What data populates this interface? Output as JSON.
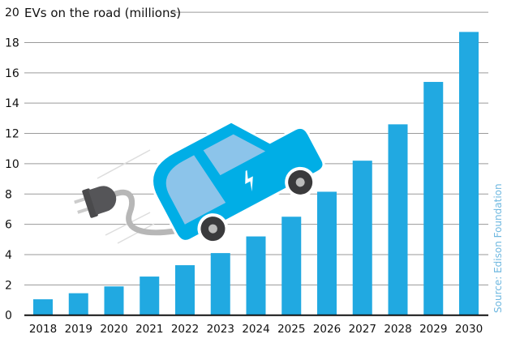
{
  "chart_data": {
    "type": "bar",
    "title": "EVs on the road (millions)",
    "xlabel": "",
    "ylabel": "",
    "ylim": [
      0,
      20
    ],
    "yticks": [
      0,
      2,
      4,
      6,
      8,
      10,
      12,
      14,
      16,
      18,
      20
    ],
    "grid": true,
    "categories": [
      "2018",
      "2019",
      "2020",
      "2021",
      "2022",
      "2023",
      "2024",
      "2025",
      "2026",
      "2027",
      "2028",
      "2029",
      "2030"
    ],
    "values": [
      1.05,
      1.45,
      1.9,
      2.55,
      3.3,
      4.1,
      5.2,
      6.5,
      8.15,
      10.2,
      12.6,
      15.4,
      18.7
    ],
    "source": "Source: Edison Foundation",
    "colors": {
      "bar": "#21a9e1",
      "grid": "#9a9a9a",
      "axis": "#111111",
      "source": "#6fb8e0",
      "car": "#00aee6",
      "window": "#8cc4ea"
    },
    "illustration": "electric-car-with-plug"
  }
}
